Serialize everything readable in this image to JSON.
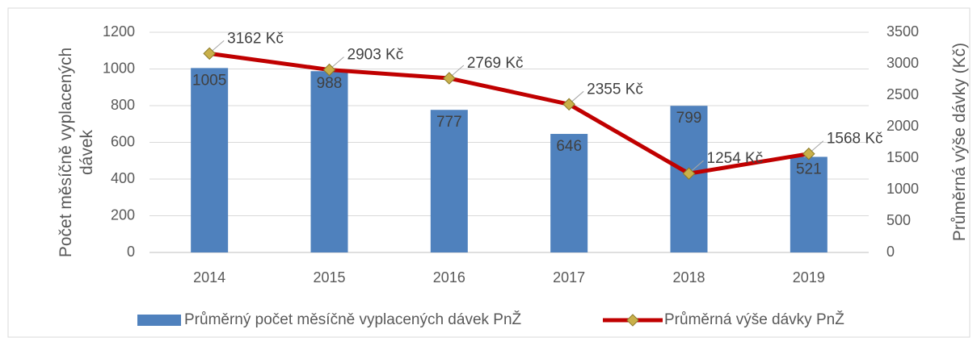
{
  "chart_data": {
    "type": "bar",
    "categories": [
      "2014",
      "2015",
      "2016",
      "2017",
      "2018",
      "2019"
    ],
    "series": [
      {
        "name": "Průměrný počet měsíčně vyplacených dávek PnŽ",
        "color": "#4f81bd",
        "values": [
          1005,
          988,
          777,
          646,
          799,
          521
        ]
      },
      {
        "name": "Průměrná výše dávky PnŽ",
        "type": "line",
        "axis": "y2",
        "color": "#c00000",
        "marker_color": "#c9b04a",
        "values": [
          3162,
          2903,
          2769,
          2355,
          1254,
          1568
        ],
        "value_labels": [
          "3162 Kč",
          "2903 Kč",
          "2769 Kč",
          "2355 Kč",
          "1254 Kč",
          "1568 Kč"
        ]
      }
    ],
    "ylabel": "Počet měsíčně vyplacených dávek",
    "y2label": "Průměrná výše dávky (Kč)",
    "ylim": [
      0,
      1200
    ],
    "yticks": [
      0,
      200,
      400,
      600,
      800,
      1000,
      1200
    ],
    "y2lim": [
      0,
      3500
    ],
    "y2ticks": [
      0,
      500,
      1000,
      1500,
      2000,
      2500,
      3000,
      3500
    ],
    "grid": true,
    "legend": "bottom"
  }
}
